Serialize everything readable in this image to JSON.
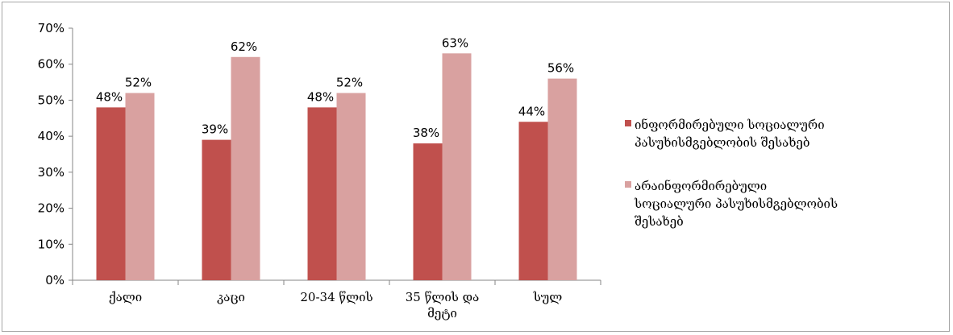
{
  "chart_data": {
    "type": "bar",
    "categories": [
      [
        "ქალი"
      ],
      [
        "კაცი"
      ],
      [
        "20-34 წლის"
      ],
      [
        "35 წლის და",
        "მეტი"
      ],
      [
        "სულ"
      ]
    ],
    "series": [
      {
        "name": [
          "ინფორმირებული სოციალური",
          "პასუხისმგებლობის შესახებ"
        ],
        "color": "#c0504d",
        "values": [
          48,
          39,
          48,
          38,
          44
        ],
        "labels": [
          "48%",
          "39%",
          "48%",
          "38%",
          "44%"
        ]
      },
      {
        "name": [
          "არაინფორმირებული",
          "სოციალური პასუხისმგებლობის",
          "შესახებ"
        ],
        "color": "#d9a1a0",
        "values": [
          52,
          62,
          52,
          63,
          56
        ],
        "labels": [
          "52%",
          "62%",
          "52%",
          "63%",
          "56%"
        ]
      }
    ],
    "yticks": [
      "0%",
      "10%",
      "20%",
      "30%",
      "40%",
      "50%",
      "60%",
      "70%"
    ],
    "ylim": [
      0,
      70
    ],
    "grid": false,
    "legend_position": "right"
  }
}
